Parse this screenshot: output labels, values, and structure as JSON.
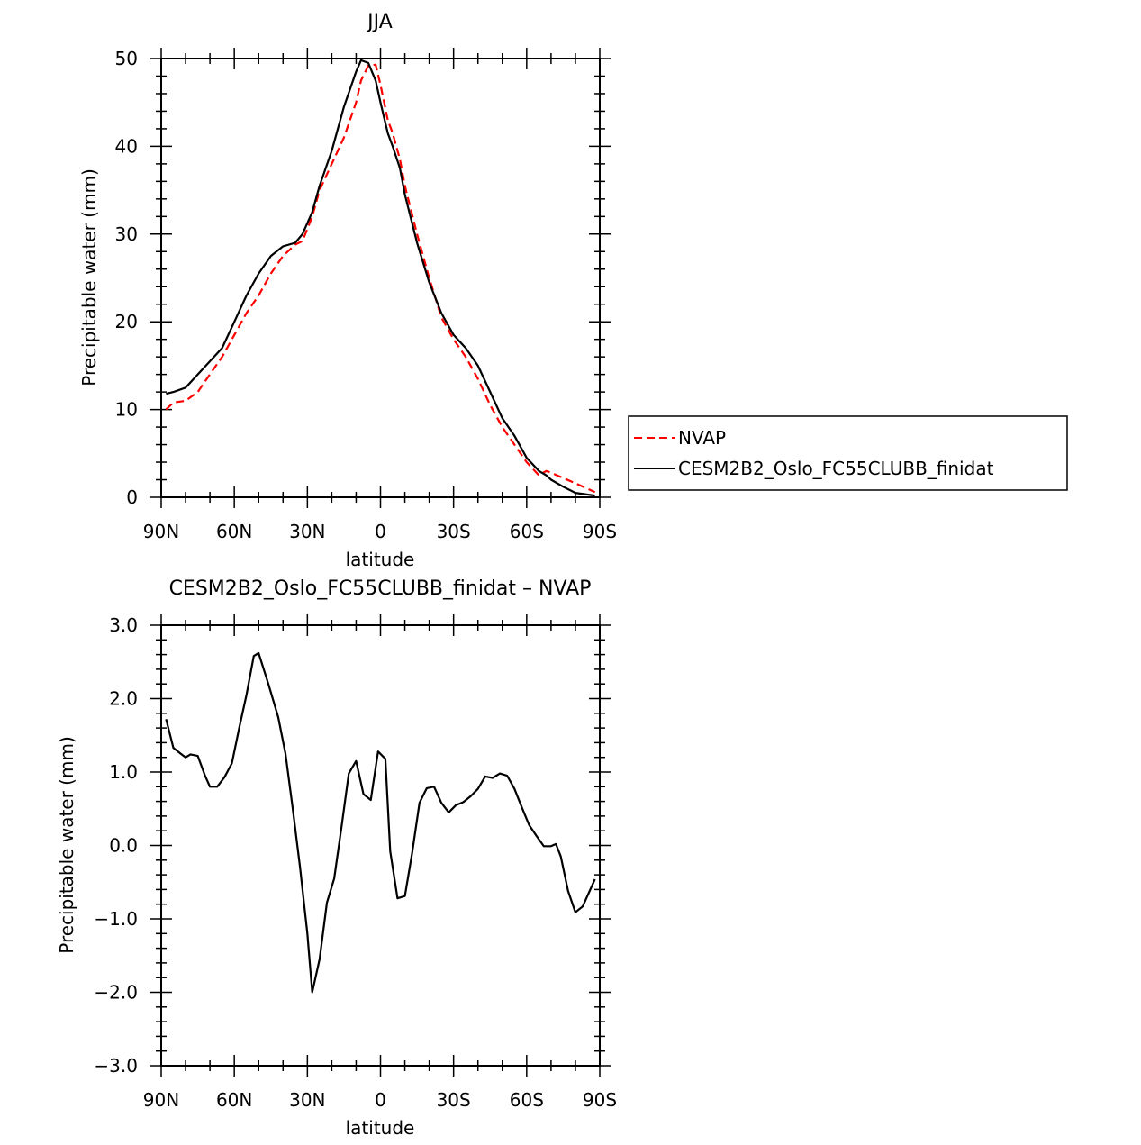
{
  "chart_data": [
    {
      "type": "line",
      "title": "JJA",
      "xlabel": "latitude",
      "ylabel": "Precipitable water (mm)",
      "xlim": [
        90,
        -90
      ],
      "ylim": [
        0,
        50
      ],
      "xticks": [
        90,
        60,
        30,
        0,
        -30,
        -60,
        -90
      ],
      "xtick_labels": [
        "90N",
        "60N",
        "30N",
        "0",
        "30S",
        "60S",
        "90S"
      ],
      "yticks": [
        0,
        10,
        20,
        30,
        40,
        50
      ],
      "ytick_labels": [
        "0",
        "10",
        "20",
        "30",
        "40",
        "50"
      ],
      "grid": false,
      "legend": {
        "placement": "right"
      },
      "series": [
        {
          "name": "NVAP",
          "color": "#ff0000",
          "dash": "dashed",
          "x": [
            88,
            85,
            80,
            75,
            70,
            65,
            60,
            55,
            50,
            45,
            40,
            35,
            32,
            28,
            25,
            20,
            15,
            10,
            8,
            5,
            2,
            0,
            -3,
            -5,
            -8,
            -10,
            -15,
            -20,
            -25,
            -30,
            -35,
            -40,
            -45,
            -50,
            -55,
            -60,
            -65,
            -68,
            -70,
            -75,
            -80,
            -88
          ],
          "y": [
            10.0,
            10.8,
            11.0,
            12.0,
            14.0,
            16.0,
            18.5,
            21.0,
            23.0,
            25.5,
            27.5,
            28.8,
            29.2,
            32.0,
            35.0,
            38.0,
            41.0,
            45.0,
            47.5,
            49.2,
            49.3,
            47.0,
            43.0,
            41.5,
            38.5,
            35.5,
            30.0,
            25.0,
            20.5,
            18.0,
            16.0,
            13.5,
            10.5,
            8.0,
            6.0,
            4.0,
            2.5,
            3.0,
            2.8,
            2.2,
            1.6,
            0.6
          ]
        },
        {
          "name": "CESM2B2_Oslo_FC55CLUBB_finidat",
          "color": "#000000",
          "dash": "solid",
          "x": [
            88,
            85,
            80,
            75,
            70,
            65,
            60,
            55,
            50,
            45,
            40,
            35,
            32,
            28,
            25,
            20,
            15,
            10,
            8,
            5,
            2,
            0,
            -3,
            -5,
            -8,
            -10,
            -15,
            -20,
            -25,
            -30,
            -35,
            -40,
            -45,
            -50,
            -55,
            -60,
            -65,
            -68,
            -70,
            -75,
            -80,
            -88
          ],
          "y": [
            11.8,
            12.0,
            12.5,
            14.0,
            15.5,
            17.0,
            20.0,
            23.0,
            25.5,
            27.5,
            28.6,
            29.0,
            30.0,
            32.5,
            35.5,
            39.5,
            44.5,
            48.5,
            49.8,
            49.5,
            47.5,
            45.0,
            41.5,
            40.0,
            37.5,
            34.5,
            29.0,
            24.5,
            21.0,
            18.5,
            17.0,
            15.0,
            12.0,
            9.0,
            7.0,
            4.5,
            3.0,
            2.5,
            2.0,
            1.2,
            0.5,
            0.2
          ]
        }
      ]
    },
    {
      "type": "line",
      "title": "CESM2B2_Oslo_FC55CLUBB_finidat – NVAP",
      "xlabel": "latitude",
      "ylabel": "Precipitable water (mm)",
      "xlim": [
        90,
        -90
      ],
      "ylim": [
        -3.0,
        3.0
      ],
      "xticks": [
        90,
        60,
        30,
        0,
        -30,
        -60,
        -90
      ],
      "xtick_labels": [
        "90N",
        "60N",
        "30N",
        "0",
        "30S",
        "60S",
        "90S"
      ],
      "yticks": [
        -3.0,
        -2.0,
        -1.0,
        0.0,
        1.0,
        2.0,
        3.0
      ],
      "ytick_labels": [
        "−3.0",
        "−2.0",
        "−1.0",
        "0.0",
        "1.0",
        "2.0",
        "3.0"
      ],
      "grid": false,
      "series": [
        {
          "color": "#000000",
          "dash": "solid",
          "x": [
            88,
            85,
            82,
            80,
            78,
            75,
            72,
            70,
            67,
            64,
            61,
            58,
            55,
            52,
            50,
            46,
            42,
            39,
            36,
            33,
            30,
            28,
            25,
            22,
            19,
            16,
            13,
            10,
            7,
            4,
            1,
            -2,
            -4,
            -7,
            -10,
            -13,
            -16,
            -19,
            -22,
            -25,
            -28,
            -31,
            -34,
            -37,
            -40,
            -43,
            -46,
            -49,
            -52,
            -55,
            -58,
            -61,
            -64,
            -67,
            -70,
            -72,
            -74,
            -77,
            -80,
            -83,
            -88
          ],
          "y": [
            1.72,
            1.33,
            1.25,
            1.2,
            1.24,
            1.22,
            0.95,
            0.8,
            0.8,
            0.93,
            1.12,
            1.6,
            2.05,
            2.58,
            2.62,
            2.2,
            1.75,
            1.25,
            0.5,
            -0.3,
            -1.2,
            -2.0,
            -1.55,
            -0.78,
            -0.45,
            0.25,
            0.98,
            1.15,
            0.7,
            0.62,
            1.28,
            1.18,
            -0.08,
            -0.72,
            -0.69,
            -0.1,
            0.58,
            0.78,
            0.8,
            0.58,
            0.45,
            0.55,
            0.59,
            0.67,
            0.77,
            0.94,
            0.92,
            0.98,
            0.95,
            0.77,
            0.52,
            0.28,
            0.13,
            -0.01,
            -0.01,
            0.02,
            -0.15,
            -0.62,
            -0.91,
            -0.83,
            -0.46
          ]
        }
      ]
    }
  ]
}
